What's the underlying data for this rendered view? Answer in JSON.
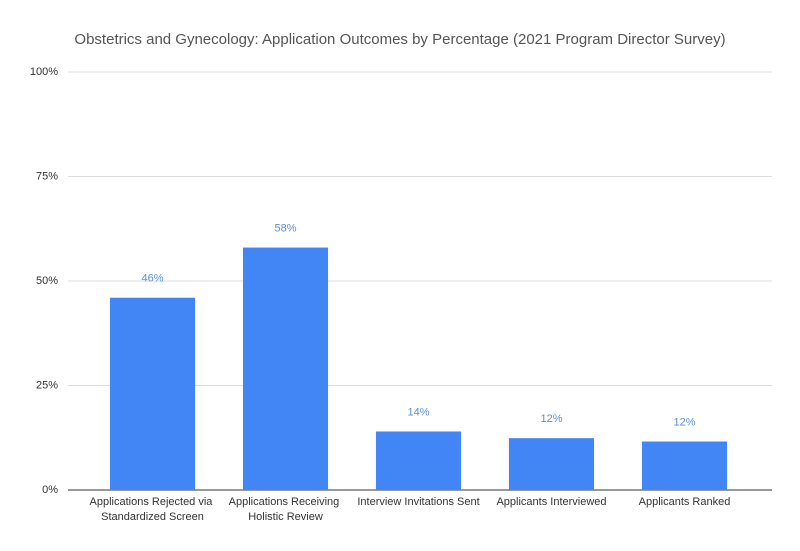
{
  "chart_data": {
    "type": "bar",
    "title": "Obstetrics and Gynecology: Application Outcomes by Percentage (2021 Program Director Survey)",
    "categories": [
      "Applications Rejected via Standardized Screen",
      "Applications Receiving Holistic Review",
      "Interview Invitations Sent",
      "Applicants Interviewed",
      "Applicants Ranked"
    ],
    "values": [
      46,
      58,
      14,
      12.4,
      11.6
    ],
    "value_labels": [
      "46%",
      "58%",
      "14%",
      "12%",
      "12%"
    ],
    "color": "#4285f4",
    "ylim": [
      0,
      100
    ],
    "yticks": [
      {
        "value": 0,
        "label": "0%"
      },
      {
        "value": 25,
        "label": "25%"
      },
      {
        "value": 50,
        "label": "50%"
      },
      {
        "value": 75,
        "label": "75%"
      },
      {
        "value": 100,
        "label": "100%"
      }
    ],
    "grid": true
  }
}
